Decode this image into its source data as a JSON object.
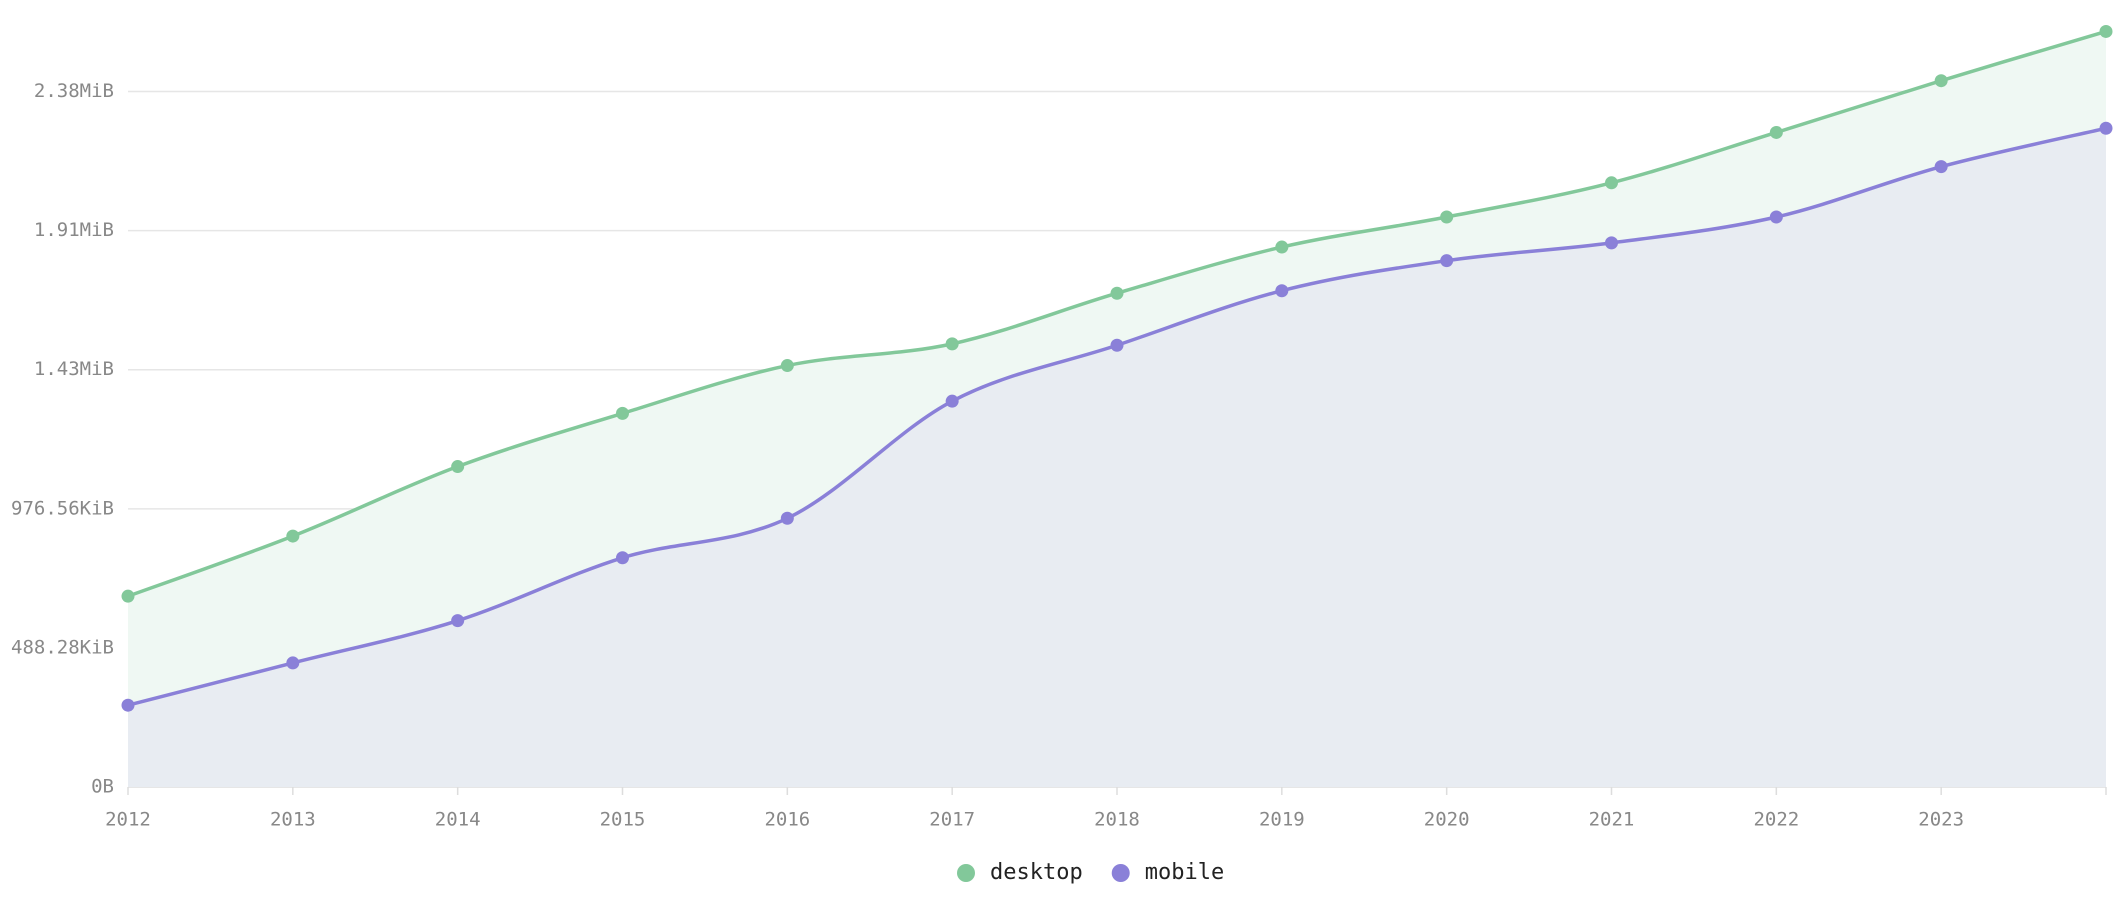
{
  "chart_data": {
    "type": "area",
    "categories": [
      "2012",
      "2013",
      "2014",
      "2015",
      "2016",
      "2017",
      "2018",
      "2019",
      "2020",
      "2021",
      "2022",
      "2023",
      null
    ],
    "series": [
      {
        "name": "desktop",
        "color": "#82c89a",
        "fill": "#eff8f3",
        "values": [
          686000,
          902000,
          1152000,
          1343000,
          1515000,
          1593000,
          1775000,
          1941000,
          2049000,
          2172000,
          2353000,
          2539000,
          2716000
        ]
      },
      {
        "name": "mobile",
        "color": "#8a80d8",
        "fill": "#e8ecf2",
        "values": [
          294000,
          446000,
          598000,
          824000,
          966000,
          1387000,
          1588000,
          1784000,
          1892000,
          1956000,
          2049000,
          2230000,
          2368000
        ]
      }
    ],
    "ylim": [
      0,
      2750000
    ],
    "yticks": [
      {
        "value": 0,
        "label": "0B"
      },
      {
        "value": 500000,
        "label": "488.28KiB"
      },
      {
        "value": 1000000,
        "label": "976.56KiB"
      },
      {
        "value": 1500000,
        "label": "1.43MiB"
      },
      {
        "value": 2000000,
        "label": "1.91MiB"
      },
      {
        "value": 2500000,
        "label": "2.38MiB"
      }
    ],
    "grid": true,
    "legend": "bottom"
  }
}
